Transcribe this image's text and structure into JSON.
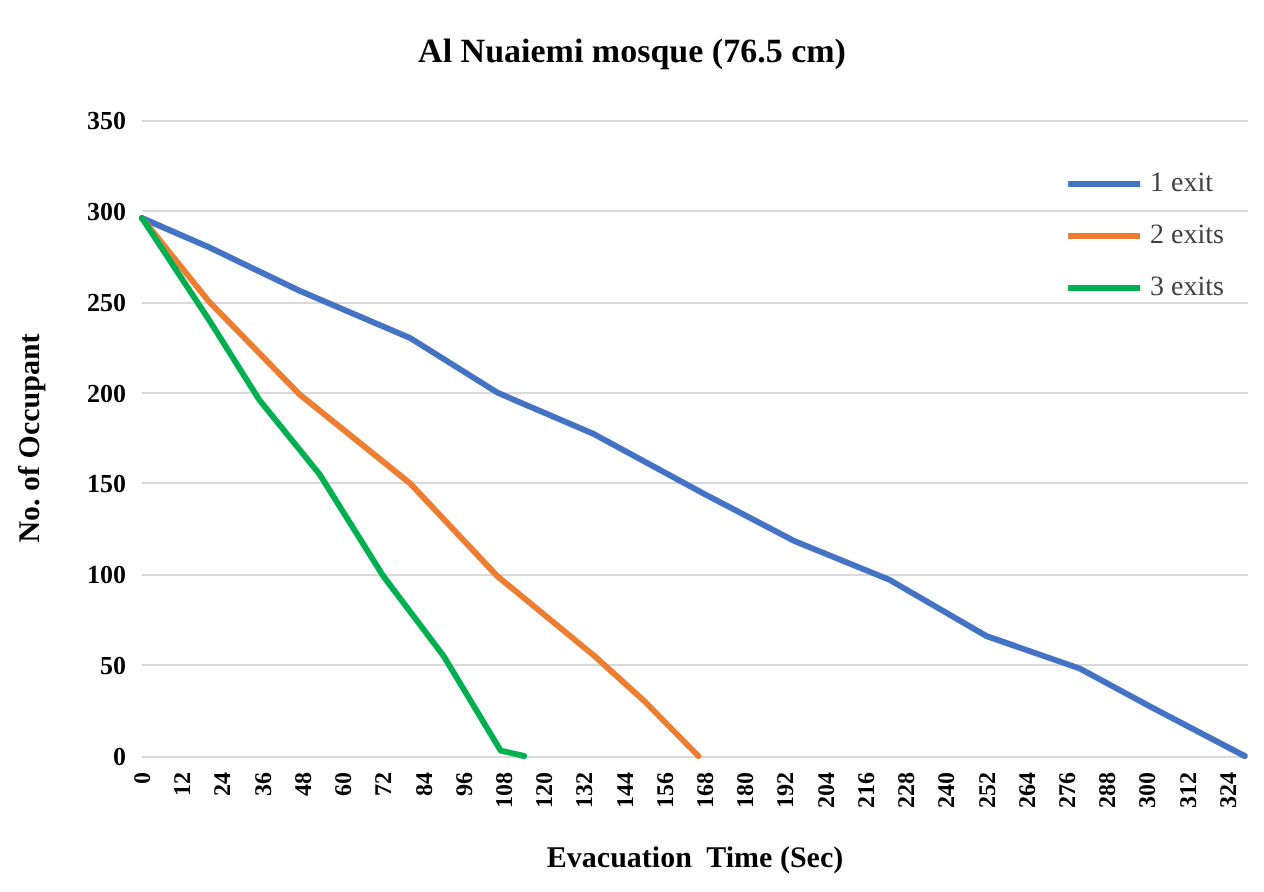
{
  "chart_data": {
    "type": "line",
    "title": "Al Nuaiemi mosque (76.5 cm)",
    "xlabel": "Evacuation  Time (Sec)",
    "ylabel": "No. of Occupant",
    "series": [
      {
        "name": "1 exit",
        "color": "#4472c4",
        "x": [
          0,
          20,
          47,
          80,
          106,
          135,
          168,
          195,
          223,
          252,
          280,
          301,
          329
        ],
        "values": [
          296,
          280,
          256,
          230,
          200,
          177,
          144,
          118,
          97,
          66,
          48,
          27,
          0
        ]
      },
      {
        "name": "2 exits",
        "color": "#ed7d31",
        "x": [
          0,
          20,
          47,
          80,
          106,
          135,
          150,
          166
        ],
        "values": [
          296,
          250,
          199,
          150,
          99,
          55,
          30,
          0
        ]
      },
      {
        "name": "3 exits",
        "color": "#00b050",
        "x": [
          0,
          20,
          35,
          53,
          72,
          90,
          107,
          114
        ],
        "values": [
          296,
          240,
          196,
          155,
          99,
          55,
          3,
          0
        ]
      }
    ],
    "xlim": [
      0,
      330
    ],
    "xticks": [
      0,
      12,
      24,
      36,
      48,
      60,
      72,
      84,
      96,
      108,
      120,
      132,
      144,
      156,
      168,
      180,
      192,
      204,
      216,
      228,
      240,
      252,
      264,
      276,
      288,
      300,
      312,
      324
    ],
    "ylim": [
      0,
      350
    ],
    "yticks": [
      0,
      50,
      100,
      150,
      200,
      250,
      300,
      350
    ],
    "grid": "y",
    "legend": "top right",
    "marker": "none",
    "line_style": "solid"
  }
}
